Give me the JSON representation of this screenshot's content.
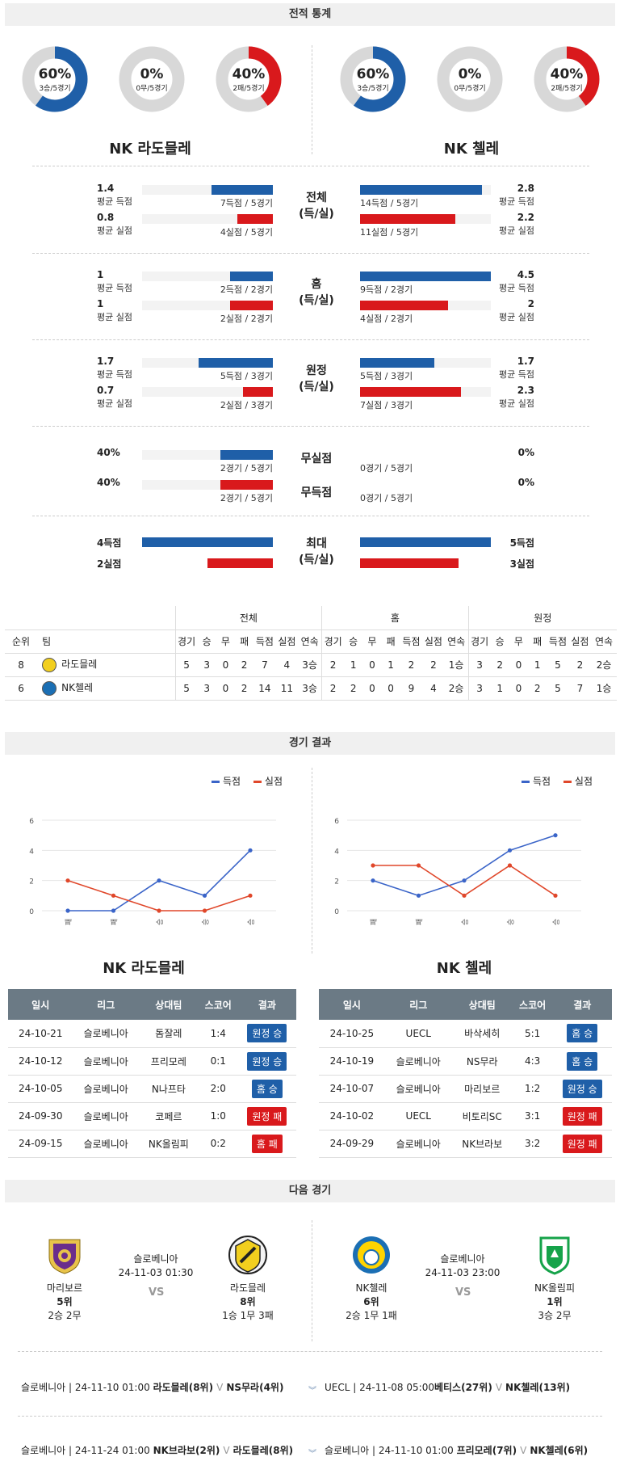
{
  "sections": {
    "stats": "전적 통계",
    "results": "경기 결과",
    "next": "다음 경기"
  },
  "colors": {
    "blue": "#1f5fa8",
    "red": "#d9191c",
    "grey": "#d8d8d8"
  },
  "teams": {
    "home": "NK 라도믈레",
    "away": "NK 첼레"
  },
  "donuts": [
    {
      "pct": "60%",
      "sub": "3승/5경기",
      "value": 0.6,
      "color": "#1f5fa8"
    },
    {
      "pct": "0%",
      "sub": "0무/5경기",
      "value": 0,
      "color": "#1f5fa8"
    },
    {
      "pct": "40%",
      "sub": "2패/5경기",
      "value": 0.4,
      "color": "#d9191c"
    },
    {
      "pct": "60%",
      "sub": "3승/5경기",
      "value": 0.6,
      "color": "#1f5fa8"
    },
    {
      "pct": "0%",
      "sub": "0무/5경기",
      "value": 0,
      "color": "#1f5fa8"
    },
    {
      "pct": "40%",
      "sub": "2패/5경기",
      "value": 0.4,
      "color": "#d9191c"
    }
  ],
  "stat_groups": [
    {
      "label1": "전체",
      "label2": "(득/실)",
      "left": [
        {
          "num": "1.4",
          "lab": "평균 득점",
          "cap": "7득점 / 5경기",
          "frac": 0.47
        },
        {
          "num": "0.8",
          "lab": "평균 실점",
          "cap": "4실점 / 5경기",
          "frac": 0.27
        }
      ],
      "right": [
        {
          "num": "2.8",
          "lab": "평균 득점",
          "cap": "14득점 / 5경기",
          "frac": 0.93
        },
        {
          "num": "2.2",
          "lab": "평균 실점",
          "cap": "11실점 / 5경기",
          "frac": 0.73
        }
      ]
    },
    {
      "label1": "홈",
      "label2": "(득/실)",
      "left": [
        {
          "num": "1",
          "lab": "평균 득점",
          "cap": "2득점 / 2경기",
          "frac": 0.33
        },
        {
          "num": "1",
          "lab": "평균 실점",
          "cap": "2실점 / 2경기",
          "frac": 0.33
        }
      ],
      "right": [
        {
          "num": "4.5",
          "lab": "평균 득점",
          "cap": "9득점 / 2경기",
          "frac": 1.0
        },
        {
          "num": "2",
          "lab": "평균 실점",
          "cap": "4실점 / 2경기",
          "frac": 0.67
        }
      ]
    },
    {
      "label1": "원정",
      "label2": "(득/실)",
      "left": [
        {
          "num": "1.7",
          "lab": "평균 득점",
          "cap": "5득점 / 3경기",
          "frac": 0.57
        },
        {
          "num": "0.7",
          "lab": "평균 실점",
          "cap": "2실점 / 3경기",
          "frac": 0.23
        }
      ],
      "right": [
        {
          "num": "1.7",
          "lab": "평균 득점",
          "cap": "5득점 / 3경기",
          "frac": 0.57
        },
        {
          "num": "2.3",
          "lab": "평균 실점",
          "cap": "7실점 / 3경기",
          "frac": 0.77
        }
      ]
    }
  ],
  "clean": {
    "labels": [
      "무실점",
      "무득점"
    ],
    "left": [
      {
        "num": "40%",
        "cap": "2경기 / 5경기",
        "frac": 0.4
      },
      {
        "num": "40%",
        "cap": "2경기 / 5경기",
        "frac": 0.4
      }
    ],
    "right": [
      {
        "num": "0%",
        "cap": "0경기 / 5경기",
        "frac": 0
      },
      {
        "num": "0%",
        "cap": "0경기 / 5경기",
        "frac": 0
      }
    ]
  },
  "max": {
    "label1": "최대",
    "label2": "(득/실)",
    "left": [
      {
        "num": "4득점",
        "frac": 1.0
      },
      {
        "num": "2실점",
        "frac": 0.5
      }
    ],
    "right": [
      {
        "num": "5득점",
        "frac": 1.0
      },
      {
        "num": "3실점",
        "frac": 0.75
      }
    ]
  },
  "standings": {
    "groups": [
      "전체",
      "홈",
      "원정"
    ],
    "cols": [
      "순위",
      "팀",
      "경기",
      "승",
      "무",
      "패",
      "득점",
      "실점",
      "연속",
      "경기",
      "승",
      "무",
      "패",
      "득점",
      "실점",
      "연속",
      "경기",
      "승",
      "무",
      "패",
      "득점",
      "실점",
      "연속"
    ],
    "rows": [
      {
        "rank": "8",
        "team": "라도믈레",
        "vals": [
          "5",
          "3",
          "0",
          "2",
          "7",
          "4",
          "3승",
          "2",
          "1",
          "0",
          "1",
          "2",
          "2",
          "1승",
          "3",
          "2",
          "0",
          "1",
          "5",
          "2",
          "2승"
        ]
      },
      {
        "rank": "6",
        "team": "NK첼레",
        "vals": [
          "5",
          "3",
          "0",
          "2",
          "14",
          "11",
          "3승",
          "2",
          "2",
          "0",
          "0",
          "9",
          "4",
          "2승",
          "3",
          "1",
          "0",
          "2",
          "5",
          "7",
          "1승"
        ]
      }
    ]
  },
  "chart_data": [
    {
      "type": "line",
      "categories": [
        "패",
        "패",
        "승",
        "승",
        "승"
      ],
      "ylim": [
        0,
        6
      ],
      "yticks": [
        "0",
        "2",
        "4",
        "6"
      ],
      "legend": [
        "득점",
        "실점"
      ],
      "series": [
        {
          "name": "득점",
          "values": [
            0,
            0,
            2,
            1,
            4
          ],
          "color": "#3a64c8"
        },
        {
          "name": "실점",
          "values": [
            2,
            1,
            0,
            0,
            1
          ],
          "color": "#e0472a"
        }
      ]
    },
    {
      "type": "line",
      "categories": [
        "패",
        "패",
        "승",
        "승",
        "승"
      ],
      "ylim": [
        0,
        6
      ],
      "yticks": [
        "0",
        "2",
        "4",
        "6"
      ],
      "legend": [
        "득점",
        "실점"
      ],
      "series": [
        {
          "name": "득점",
          "values": [
            2,
            1,
            2,
            4,
            5
          ],
          "color": "#3a64c8"
        },
        {
          "name": "실점",
          "values": [
            3,
            3,
            1,
            3,
            1
          ],
          "color": "#e0472a"
        }
      ]
    }
  ],
  "results_head": [
    "일시",
    "리그",
    "상대팀",
    "스코어",
    "결과"
  ],
  "results": [
    [
      [
        "24-10-21",
        "슬로베니아",
        "돔잘레",
        "1:4",
        "원정 승",
        "win"
      ],
      [
        "24-10-12",
        "슬로베니아",
        "프리모레",
        "0:1",
        "원정 승",
        "win"
      ],
      [
        "24-10-05",
        "슬로베니아",
        "N나프타",
        "2:0",
        "홈 승",
        "win"
      ],
      [
        "24-09-30",
        "슬로베니아",
        "코페르",
        "1:0",
        "원정 패",
        "loss"
      ],
      [
        "24-09-15",
        "슬로베니아",
        "NK올림피",
        "0:2",
        "홈 패",
        "loss"
      ]
    ],
    [
      [
        "24-10-25",
        "UECL",
        "바삭세히",
        "5:1",
        "홈 승",
        "win"
      ],
      [
        "24-10-19",
        "슬로베니아",
        "NS무라",
        "4:3",
        "홈 승",
        "win"
      ],
      [
        "24-10-07",
        "슬로베니아",
        "마리보르",
        "1:2",
        "원정 승",
        "win"
      ],
      [
        "24-10-02",
        "UECL",
        "비토리SC",
        "3:1",
        "원정 패",
        "loss"
      ],
      [
        "24-09-29",
        "슬로베니아",
        "NK브라보",
        "3:2",
        "원정 패",
        "loss"
      ]
    ]
  ],
  "next": [
    {
      "home": {
        "name": "마리보르",
        "rank": "5위",
        "rec": "2승 2무"
      },
      "league": "슬로베니아",
      "time": "24-11-03 01:30",
      "vs": "VS",
      "away": {
        "name": "라도믈레",
        "rank": "8위",
        "rec": "1승 1무 3패"
      }
    },
    {
      "home": {
        "name": "NK첼레",
        "rank": "6위",
        "rec": "2승 1무 1패"
      },
      "league": "슬로베니아",
      "time": "24-11-03 23:00",
      "vs": "VS",
      "away": {
        "name": "NK올림피",
        "rank": "1위",
        "rec": "3승 2무"
      }
    }
  ],
  "future": [
    {
      "pre": "슬로베니아 | 24-11-10 01:00 ",
      "a": "라도믈레(8위)",
      "v": "V",
      "b": "NS무라(4위)"
    },
    {
      "pre": "UECL | 24-11-08 05:00",
      "a": "베티스(27위)",
      "v": "V",
      "b": "NK첼레(13위)"
    },
    {
      "pre": "슬로베니아 | 24-11-24 01:00 ",
      "a": "NK브라보(2위)",
      "v": "V",
      "b": "라도믈레(8위)"
    },
    {
      "pre": "슬로베니아 | 24-11-10 01:00 ",
      "a": "프리모레(7위)",
      "v": "V",
      "b": "NK첼레(6위)"
    }
  ]
}
